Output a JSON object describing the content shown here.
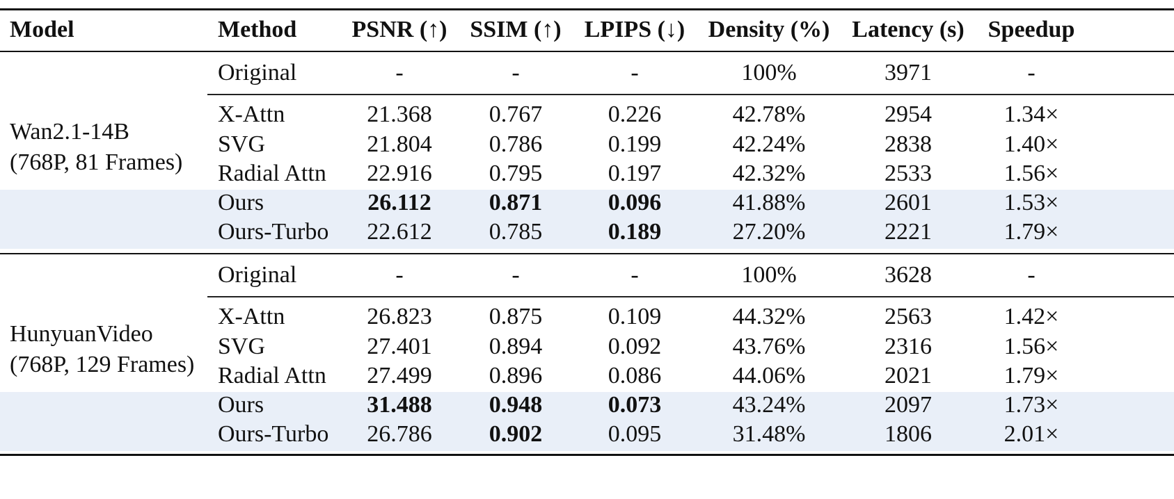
{
  "headers": [
    "Model",
    "Method",
    "PSNR (↑)",
    "SSIM (↑)",
    "LPIPS (↓)",
    "Density (%)",
    "Latency (s)",
    "Speedup"
  ],
  "groups": [
    {
      "model_line1": "Wan2.1-14B",
      "model_line2": "(768P, 81 Frames)",
      "rows": [
        {
          "method": "Original",
          "psnr": "-",
          "ssim": "-",
          "lpips": "-",
          "density": "100%",
          "latency": "3971",
          "speedup": "-"
        },
        {
          "method": "X-Attn",
          "psnr": "21.368",
          "ssim": "0.767",
          "lpips": "0.226",
          "density": "42.78%",
          "latency": "2954",
          "speedup": "1.34×"
        },
        {
          "method": "SVG",
          "psnr": "21.804",
          "ssim": "0.786",
          "lpips": "0.199",
          "density": "42.24%",
          "latency": "2838",
          "speedup": "1.40×"
        },
        {
          "method": "Radial Attn",
          "psnr": "22.916",
          "ssim": "0.795",
          "lpips": "0.197",
          "density": "42.32%",
          "latency": "2533",
          "speedup": "1.56×"
        },
        {
          "method": "Ours",
          "psnr": "26.112",
          "ssim": "0.871",
          "lpips": "0.096",
          "density": "41.88%",
          "latency": "2601",
          "speedup": "1.53×"
        },
        {
          "method": "Ours-Turbo",
          "psnr": "22.612",
          "ssim": "0.785",
          "lpips": "0.189",
          "density": "27.20%",
          "latency": "2221",
          "speedup": "1.79×"
        }
      ]
    },
    {
      "model_line1": "HunyuanVideo",
      "model_line2": "(768P, 129 Frames)",
      "rows": [
        {
          "method": "Original",
          "psnr": "-",
          "ssim": "-",
          "lpips": "-",
          "density": "100%",
          "latency": "3628",
          "speedup": "-"
        },
        {
          "method": "X-Attn",
          "psnr": "26.823",
          "ssim": "0.875",
          "lpips": "0.109",
          "density": "44.32%",
          "latency": "2563",
          "speedup": "1.42×"
        },
        {
          "method": "SVG",
          "psnr": "27.401",
          "ssim": "0.894",
          "lpips": "0.092",
          "density": "43.76%",
          "latency": "2316",
          "speedup": "1.56×"
        },
        {
          "method": "Radial Attn",
          "psnr": "27.499",
          "ssim": "0.896",
          "lpips": "0.086",
          "density": "44.06%",
          "latency": "2021",
          "speedup": "1.79×"
        },
        {
          "method": "Ours",
          "psnr": "31.488",
          "ssim": "0.948",
          "lpips": "0.073",
          "density": "43.24%",
          "latency": "2097",
          "speedup": "1.73×"
        },
        {
          "method": "Ours-Turbo",
          "psnr": "26.786",
          "ssim": "0.902",
          "lpips": "0.095",
          "density": "31.48%",
          "latency": "1806",
          "speedup": "2.01×"
        }
      ]
    }
  ],
  "highlight_color": "#e9eff8"
}
